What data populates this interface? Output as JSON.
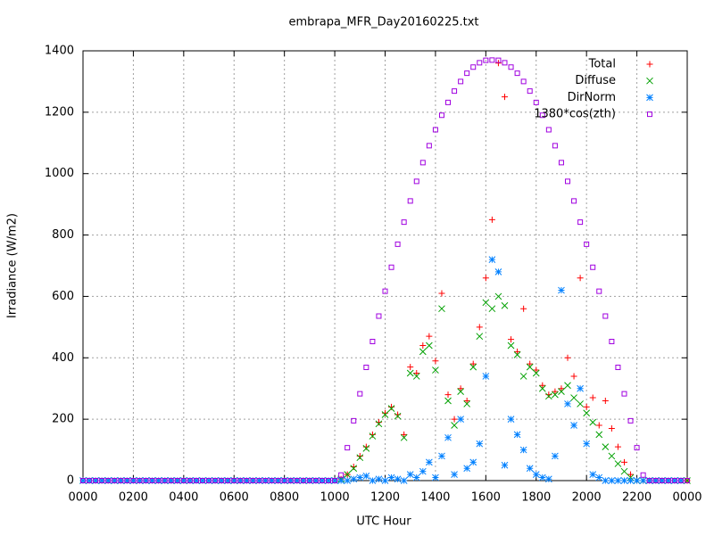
{
  "chart_data": {
    "type": "scatter",
    "title": "embrapa_MFR_Day20160225.txt",
    "x_label": "UTC Hour",
    "y_label": "Irradiance (W/m2)",
    "xlim": [
      0,
      24
    ],
    "ylim": [
      0,
      1400
    ],
    "xticks": [
      {
        "value": 0,
        "label": "0000"
      },
      {
        "value": 2,
        "label": "0200"
      },
      {
        "value": 4,
        "label": "0400"
      },
      {
        "value": 6,
        "label": "0600"
      },
      {
        "value": 8,
        "label": "0800"
      },
      {
        "value": 10,
        "label": "1000"
      },
      {
        "value": 12,
        "label": "1200"
      },
      {
        "value": 14,
        "label": "1400"
      },
      {
        "value": 16,
        "label": "1600"
      },
      {
        "value": 18,
        "label": "1800"
      },
      {
        "value": 20,
        "label": "2000"
      },
      {
        "value": 22,
        "label": "2200"
      },
      {
        "value": 24,
        "label": "0000"
      }
    ],
    "yticks": [
      0,
      200,
      400,
      600,
      800,
      1000,
      1200,
      1400
    ],
    "grid": true,
    "legend": "top-right",
    "x": [
      0,
      0.25,
      0.5,
      0.75,
      1,
      1.25,
      1.5,
      1.75,
      2,
      2.25,
      2.5,
      2.75,
      3,
      3.25,
      3.5,
      3.75,
      4,
      4.25,
      4.5,
      4.75,
      5,
      5.25,
      5.5,
      5.75,
      6,
      6.25,
      6.5,
      6.75,
      7,
      7.25,
      7.5,
      7.75,
      8,
      8.25,
      8.5,
      8.75,
      9,
      9.25,
      9.5,
      9.75,
      10,
      10.25,
      10.5,
      10.75,
      11,
      11.25,
      11.5,
      11.75,
      12,
      12.25,
      12.5,
      12.75,
      13,
      13.25,
      13.5,
      13.75,
      14,
      14.25,
      14.5,
      14.75,
      15,
      15.25,
      15.5,
      15.75,
      16,
      16.25,
      16.5,
      16.75,
      17,
      17.25,
      17.5,
      17.75,
      18,
      18.25,
      18.5,
      18.75,
      19,
      19.25,
      19.5,
      19.75,
      20,
      20.25,
      20.5,
      20.75,
      21,
      21.25,
      21.5,
      21.75,
      22,
      22.25,
      22.5,
      22.75,
      23,
      23.25,
      23.5,
      23.75,
      24
    ],
    "series": [
      {
        "name": "Total",
        "color": "#ff0000",
        "marker": "plus",
        "values": [
          0,
          0,
          0,
          0,
          0,
          0,
          0,
          0,
          0,
          0,
          0,
          0,
          0,
          0,
          0,
          0,
          0,
          0,
          0,
          0,
          0,
          0,
          0,
          0,
          0,
          0,
          0,
          0,
          0,
          0,
          0,
          0,
          0,
          0,
          0,
          0,
          0,
          0,
          0,
          0,
          0,
          5,
          20,
          45,
          80,
          110,
          150,
          190,
          220,
          240,
          215,
          150,
          370,
          350,
          440,
          470,
          390,
          610,
          280,
          200,
          300,
          260,
          380,
          500,
          660,
          850,
          1360,
          1250,
          460,
          420,
          560,
          380,
          360,
          310,
          280,
          290,
          300,
          400,
          340,
          660,
          240,
          270,
          180,
          260,
          170,
          110,
          60,
          20,
          0,
          0,
          0,
          0,
          0,
          0,
          0,
          0,
          0
        ]
      },
      {
        "name": "Diffuse",
        "color": "#00a000",
        "marker": "cross",
        "values": [
          0,
          0,
          0,
          0,
          0,
          0,
          0,
          0,
          0,
          0,
          0,
          0,
          0,
          0,
          0,
          0,
          0,
          0,
          0,
          0,
          0,
          0,
          0,
          0,
          0,
          0,
          0,
          0,
          0,
          0,
          0,
          0,
          0,
          0,
          0,
          0,
          0,
          0,
          0,
          0,
          0,
          5,
          20,
          40,
          75,
          105,
          145,
          185,
          215,
          235,
          210,
          140,
          350,
          340,
          420,
          440,
          360,
          560,
          260,
          180,
          290,
          250,
          370,
          470,
          580,
          560,
          600,
          570,
          440,
          410,
          340,
          370,
          350,
          300,
          275,
          280,
          290,
          310,
          270,
          250,
          220,
          190,
          150,
          110,
          80,
          55,
          30,
          10,
          0,
          0,
          0,
          0,
          0,
          0,
          0,
          0,
          0
        ]
      },
      {
        "name": "DirNorm",
        "color": "#0080ff",
        "marker": "star",
        "values": [
          0,
          0,
          0,
          0,
          0,
          0,
          0,
          0,
          0,
          0,
          0,
          0,
          0,
          0,
          0,
          0,
          0,
          0,
          0,
          0,
          0,
          0,
          0,
          0,
          0,
          0,
          0,
          0,
          0,
          0,
          0,
          0,
          0,
          0,
          0,
          0,
          0,
          0,
          0,
          0,
          0,
          0,
          0,
          5,
          10,
          15,
          0,
          5,
          0,
          10,
          5,
          0,
          20,
          10,
          30,
          60,
          10,
          80,
          140,
          20,
          200,
          40,
          60,
          120,
          340,
          720,
          680,
          50,
          200,
          150,
          100,
          40,
          20,
          10,
          5,
          80,
          620,
          250,
          180,
          300,
          120,
          20,
          10,
          0,
          0,
          0,
          0,
          0,
          0,
          0,
          0,
          0,
          0,
          0,
          0,
          0
        ]
      },
      {
        "name": "1380*cos(zth)",
        "color": "#a000e0",
        "marker": "square",
        "values": [
          0,
          0,
          0,
          0,
          0,
          0,
          0,
          0,
          0,
          0,
          0,
          0,
          0,
          0,
          0,
          0,
          0,
          0,
          0,
          0,
          0,
          0,
          0,
          0,
          0,
          0,
          0,
          0,
          0,
          0,
          0,
          0,
          0,
          0,
          0,
          0,
          0,
          0,
          0,
          0,
          0,
          18,
          107,
          195,
          283,
          369,
          453,
          536,
          617,
          695,
          770,
          842,
          911,
          975,
          1036,
          1091,
          1143,
          1190,
          1232,
          1269,
          1300,
          1327,
          1347,
          1361,
          1369,
          1370,
          1369,
          1361,
          1347,
          1327,
          1300,
          1269,
          1232,
          1190,
          1143,
          1091,
          1036,
          975,
          911,
          842,
          770,
          695,
          617,
          536,
          453,
          369,
          283,
          195,
          107,
          18,
          0,
          0,
          0,
          0,
          0,
          0,
          0
        ]
      }
    ]
  }
}
